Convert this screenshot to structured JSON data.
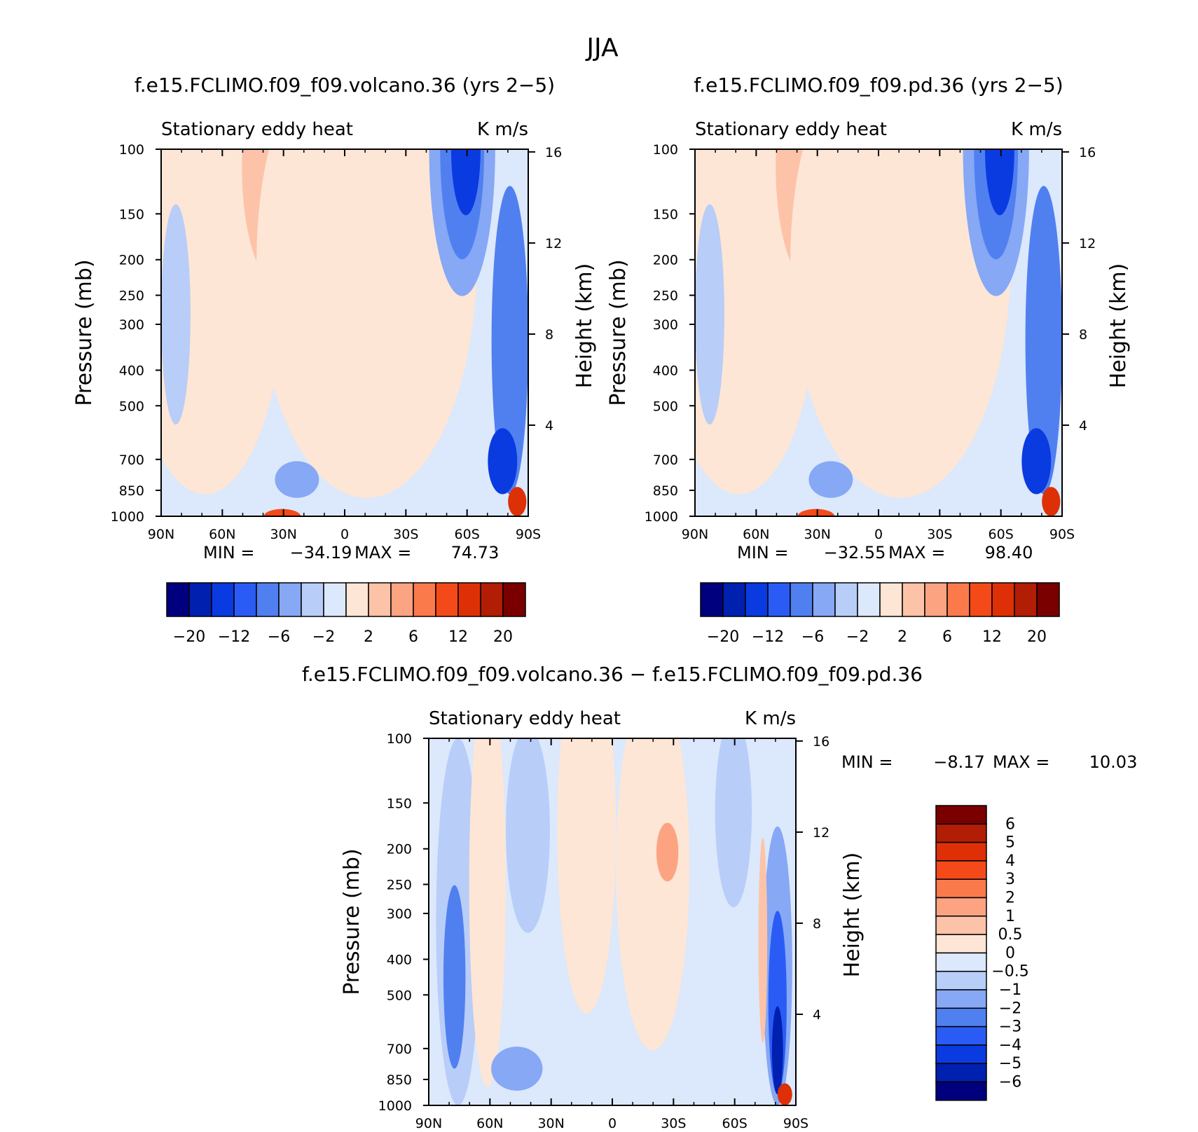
{
  "figure": {
    "title": "JJA"
  },
  "chart_data": [
    {
      "type": "heatmap",
      "panel": "top-left",
      "title": "f.e15.FCLIMO.f09_f09.volcano.36 (yrs 2−5)",
      "left_label": "Stationary eddy heat",
      "right_label": "K m/s",
      "xlabel": "",
      "ylabel": "Pressure (mb)",
      "y2label": "Height (km)",
      "x_ticks": [
        "90N",
        "60N",
        "30N",
        "0",
        "30S",
        "60S",
        "90S"
      ],
      "y_ticks": [
        "100",
        "150",
        "200",
        "250",
        "300",
        "400",
        "500",
        "700",
        "850",
        "1000"
      ],
      "y2_ticks": [
        "16",
        "12",
        "8",
        "4"
      ],
      "stats": {
        "min_label": "MIN =",
        "min": "−34.19",
        "max_label": "MAX =",
        "max": "74.73"
      },
      "colorbar_labels": [
        "−20",
        "−12",
        "−6",
        "−2",
        "2",
        "6",
        "12",
        "20"
      ],
      "peak_positive": 74.73,
      "peak_negative": -34.19
    },
    {
      "type": "heatmap",
      "panel": "top-right",
      "title": "f.e15.FCLIMO.f09_f09.pd.36 (yrs 2−5)",
      "left_label": "Stationary eddy heat",
      "right_label": "K m/s",
      "xlabel": "",
      "ylabel": "Pressure (mb)",
      "y2label": "Height (km)",
      "x_ticks": [
        "90N",
        "60N",
        "30N",
        "0",
        "30S",
        "60S",
        "90S"
      ],
      "y_ticks": [
        "100",
        "150",
        "200",
        "250",
        "300",
        "400",
        "500",
        "700",
        "850",
        "1000"
      ],
      "y2_ticks": [
        "16",
        "12",
        "8",
        "4"
      ],
      "stats": {
        "min_label": "MIN =",
        "min": "−32.55",
        "max_label": "MAX =",
        "max": "98.40"
      },
      "colorbar_labels": [
        "−20",
        "−12",
        "−6",
        "−2",
        "2",
        "6",
        "12",
        "20"
      ],
      "peak_positive": 98.4,
      "peak_negative": -32.55
    },
    {
      "type": "heatmap",
      "panel": "bottom",
      "title": "f.e15.FCLIMO.f09_f09.volcano.36 − f.e15.FCLIMO.f09_f09.pd.36",
      "left_label": "Stationary eddy heat",
      "right_label": "K m/s",
      "xlabel": "",
      "ylabel": "Pressure (mb)",
      "y2label": "Height (km)",
      "x_ticks": [
        "90N",
        "60N",
        "30N",
        "0",
        "30S",
        "60S",
        "90S"
      ],
      "y_ticks": [
        "100",
        "150",
        "200",
        "250",
        "300",
        "400",
        "500",
        "700",
        "850",
        "1000"
      ],
      "y2_ticks": [
        "16",
        "12",
        "8",
        "4"
      ],
      "stats": {
        "min_label": "MIN =",
        "min": "−8.17",
        "max_label": "MAX =",
        "max": "10.03"
      },
      "colorbar_labels": [
        "6",
        "5",
        "4",
        "3",
        "2",
        "1",
        "0.5",
        "0",
        "−0.5",
        "−1",
        "−2",
        "−3",
        "−4",
        "−5",
        "−6"
      ],
      "peak_positive": 10.03,
      "peak_negative": -8.17
    }
  ],
  "palette": [
    "#00007f",
    "#0020b0",
    "#0a3be0",
    "#2a5cf5",
    "#5080f0",
    "#86a8f5",
    "#b8cdf8",
    "#dce8fb",
    "#fde6d6",
    "#fdc3a8",
    "#fca482",
    "#fa7a4c",
    "#f44a1a",
    "#dd3007",
    "#b21d05",
    "#7a0000"
  ]
}
